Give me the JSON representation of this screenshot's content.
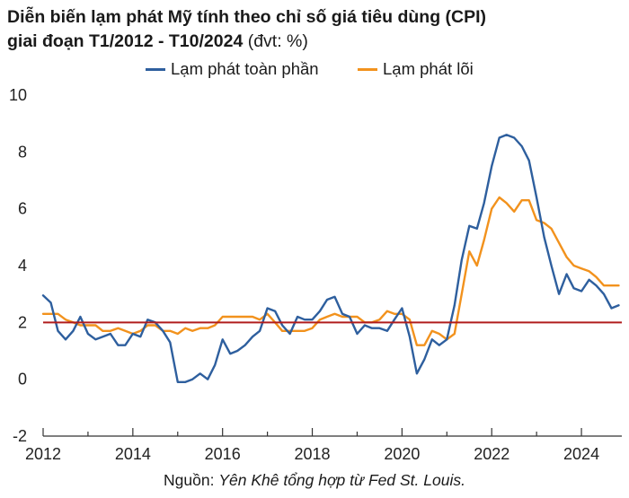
{
  "title": {
    "line1": "Diễn biến lạm phát Mỹ tính theo chỉ số giá tiêu dùng (CPI)",
    "line2_bold": "giai đoạn T1/2012 - T10/2024",
    "line2_unit": " (đvt: %)"
  },
  "source": {
    "prefix": "Nguồn: ",
    "text": "Yên Khê tổng hợp từ Fed St. Louis."
  },
  "chart_data": {
    "type": "line",
    "title": "Diễn biến lạm phát Mỹ tính theo chỉ số giá tiêu dùng (CPI) giai đoạn T1/2012 - T10/2024 (đvt: %)",
    "xlabel": "",
    "ylabel": "",
    "xlim": [
      2012,
      2024.9
    ],
    "ylim": [
      -2,
      10
    ],
    "yticks": [
      "-2",
      "0",
      "2",
      "4",
      "6",
      "8",
      "10"
    ],
    "ytick_values": [
      -2,
      0,
      2,
      4,
      6,
      8,
      10
    ],
    "xticks": [
      "2012",
      "2014",
      "2016",
      "2018",
      "2020",
      "2022",
      "2024"
    ],
    "xtick_values": [
      2012,
      2014,
      2016,
      2018,
      2020,
      2022,
      2024
    ],
    "reference_line": {
      "y": 2,
      "color": "#b01c1c"
    },
    "legend_position": "top",
    "colors": {
      "headline": "#2e5f9e",
      "core": "#f2921d",
      "axis": "#333333"
    },
    "series": [
      {
        "name": "Lạm phát toàn phần",
        "x": [
          2012.0,
          2012.17,
          2012.33,
          2012.5,
          2012.67,
          2012.83,
          2013.0,
          2013.17,
          2013.33,
          2013.5,
          2013.67,
          2013.83,
          2014.0,
          2014.17,
          2014.33,
          2014.5,
          2014.67,
          2014.83,
          2015.0,
          2015.17,
          2015.33,
          2015.5,
          2015.67,
          2015.83,
          2016.0,
          2016.17,
          2016.33,
          2016.5,
          2016.67,
          2016.83,
          2017.0,
          2017.17,
          2017.33,
          2017.5,
          2017.67,
          2017.83,
          2018.0,
          2018.17,
          2018.33,
          2018.5,
          2018.67,
          2018.83,
          2019.0,
          2019.17,
          2019.33,
          2019.5,
          2019.67,
          2019.83,
          2020.0,
          2020.17,
          2020.33,
          2020.5,
          2020.67,
          2020.83,
          2021.0,
          2021.17,
          2021.33,
          2021.5,
          2021.67,
          2021.83,
          2022.0,
          2022.17,
          2022.33,
          2022.5,
          2022.67,
          2022.83,
          2023.0,
          2023.17,
          2023.33,
          2023.5,
          2023.67,
          2023.83,
          2024.0,
          2024.17,
          2024.33,
          2024.5,
          2024.67,
          2024.83
        ],
        "values": [
          2.95,
          2.7,
          1.7,
          1.4,
          1.7,
          2.2,
          1.6,
          1.4,
          1.5,
          1.6,
          1.2,
          1.2,
          1.6,
          1.5,
          2.1,
          2.0,
          1.7,
          1.3,
          -0.1,
          -0.1,
          0.0,
          0.2,
          0.0,
          0.5,
          1.4,
          0.9,
          1.0,
          1.2,
          1.5,
          1.7,
          2.5,
          2.4,
          1.9,
          1.6,
          2.2,
          2.1,
          2.1,
          2.4,
          2.8,
          2.9,
          2.3,
          2.2,
          1.6,
          1.9,
          1.8,
          1.8,
          1.7,
          2.1,
          2.5,
          1.5,
          0.2,
          0.7,
          1.4,
          1.2,
          1.4,
          2.6,
          4.2,
          5.4,
          5.3,
          6.2,
          7.5,
          8.5,
          8.6,
          8.5,
          8.2,
          7.7,
          6.4,
          5.0,
          4.0,
          3.0,
          3.7,
          3.2,
          3.1,
          3.5,
          3.3,
          3.0,
          2.5,
          2.6
        ]
      },
      {
        "name": "Lạm phát lõi",
        "x": [
          2012.0,
          2012.17,
          2012.33,
          2012.5,
          2012.67,
          2012.83,
          2013.0,
          2013.17,
          2013.33,
          2013.5,
          2013.67,
          2013.83,
          2014.0,
          2014.17,
          2014.33,
          2014.5,
          2014.67,
          2014.83,
          2015.0,
          2015.17,
          2015.33,
          2015.5,
          2015.67,
          2015.83,
          2016.0,
          2016.17,
          2016.33,
          2016.5,
          2016.67,
          2016.83,
          2017.0,
          2017.17,
          2017.33,
          2017.5,
          2017.67,
          2017.83,
          2018.0,
          2018.17,
          2018.33,
          2018.5,
          2018.67,
          2018.83,
          2019.0,
          2019.17,
          2019.33,
          2019.5,
          2019.67,
          2019.83,
          2020.0,
          2020.17,
          2020.33,
          2020.5,
          2020.67,
          2020.83,
          2021.0,
          2021.17,
          2021.33,
          2021.5,
          2021.67,
          2021.83,
          2022.0,
          2022.17,
          2022.33,
          2022.5,
          2022.67,
          2022.83,
          2023.0,
          2023.17,
          2023.33,
          2023.5,
          2023.67,
          2023.83,
          2024.0,
          2024.17,
          2024.33,
          2024.5,
          2024.67,
          2024.83
        ],
        "values": [
          2.3,
          2.3,
          2.3,
          2.1,
          2.0,
          1.9,
          1.9,
          1.9,
          1.7,
          1.7,
          1.8,
          1.7,
          1.6,
          1.7,
          1.9,
          1.9,
          1.7,
          1.7,
          1.6,
          1.8,
          1.7,
          1.8,
          1.8,
          1.9,
          2.2,
          2.2,
          2.2,
          2.2,
          2.2,
          2.1,
          2.3,
          2.0,
          1.7,
          1.7,
          1.7,
          1.7,
          1.8,
          2.1,
          2.2,
          2.3,
          2.2,
          2.2,
          2.2,
          2.0,
          2.0,
          2.1,
          2.4,
          2.3,
          2.3,
          2.1,
          1.2,
          1.2,
          1.7,
          1.6,
          1.4,
          1.6,
          3.0,
          4.5,
          4.0,
          4.9,
          6.0,
          6.4,
          6.2,
          5.9,
          6.3,
          6.3,
          5.6,
          5.5,
          5.3,
          4.8,
          4.3,
          4.0,
          3.9,
          3.8,
          3.6,
          3.3,
          3.3,
          3.3
        ]
      }
    ]
  }
}
